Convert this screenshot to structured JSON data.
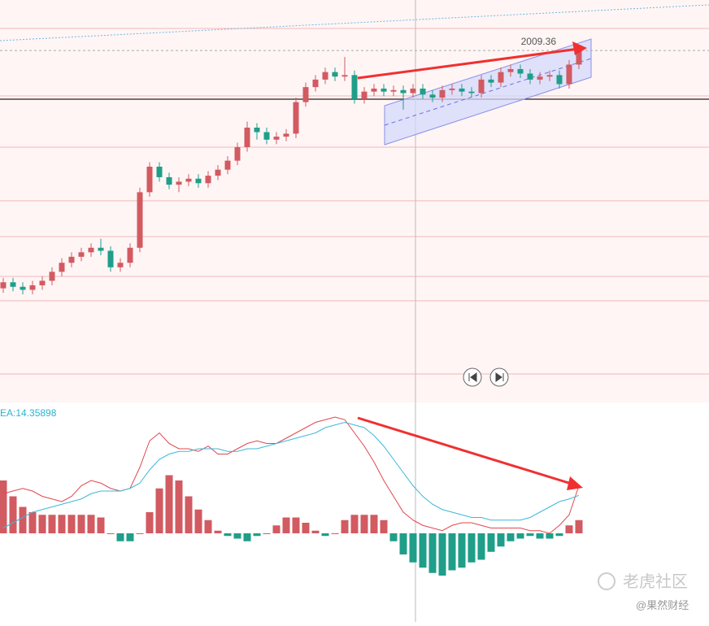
{
  "chart_data": [
    {
      "type": "candlestick",
      "price_line": 2009.36,
      "ylim": [
        1775,
        2043
      ],
      "up_color": "#d25a61",
      "down_color": "#1f9e89",
      "open": [
        1851,
        1855,
        1852,
        1850,
        1853,
        1856,
        1862,
        1868,
        1872,
        1875,
        1878,
        1876,
        1865,
        1868,
        1878,
        1915,
        1932,
        1925,
        1920,
        1922,
        1924,
        1921,
        1926,
        1930,
        1936,
        1945,
        1958,
        1955,
        1950,
        1952,
        1954,
        1975,
        1985,
        1990,
        1995,
        1992,
        1993,
        1977,
        1982,
        1984,
        1982,
        1983,
        1981,
        1984,
        1980,
        1978,
        1983,
        1984,
        1982,
        1981,
        1990,
        1988,
        1995,
        1997,
        1994,
        1990,
        1992,
        1993,
        1987,
        2000
      ],
      "high": [
        1858,
        1858,
        1855,
        1856,
        1859,
        1865,
        1871,
        1875,
        1878,
        1881,
        1884,
        1879,
        1871,
        1881,
        1918,
        1935,
        1935,
        1928,
        1925,
        1927,
        1927,
        1929,
        1933,
        1939,
        1948,
        1962,
        1961,
        1958,
        1955,
        1957,
        1978,
        1988,
        1993,
        1998,
        1998,
        2005,
        1996,
        1985,
        1987,
        1987,
        1986,
        1986,
        1987,
        1987,
        1983,
        1986,
        1987,
        1987,
        1985,
        1993,
        1993,
        1998,
        2000,
        2000,
        1997,
        1995,
        1996,
        1996,
        2003,
        2012
      ],
      "low": [
        1848,
        1849,
        1847,
        1847,
        1850,
        1853,
        1859,
        1865,
        1869,
        1872,
        1873,
        1862,
        1862,
        1865,
        1875,
        1912,
        1922,
        1917,
        1915,
        1919,
        1918,
        1918,
        1923,
        1927,
        1933,
        1942,
        1950,
        1947,
        1947,
        1949,
        1951,
        1972,
        1982,
        1987,
        1989,
        1989,
        1974,
        1974,
        1979,
        1979,
        1979,
        1970,
        1978,
        1977,
        1975,
        1975,
        1980,
        1979,
        1978,
        1978,
        1985,
        1985,
        1992,
        1991,
        1987,
        1987,
        1989,
        1984,
        1984,
        1997
      ],
      "close": [
        1855,
        1852,
        1850,
        1853,
        1856,
        1862,
        1868,
        1872,
        1875,
        1878,
        1876,
        1865,
        1868,
        1878,
        1915,
        1932,
        1925,
        1920,
        1922,
        1924,
        1921,
        1926,
        1930,
        1936,
        1945,
        1958,
        1955,
        1950,
        1952,
        1954,
        1975,
        1985,
        1990,
        1995,
        1992,
        1993,
        1977,
        1982,
        1984,
        1982,
        1983,
        1981,
        1984,
        1980,
        1978,
        1983,
        1984,
        1982,
        1981,
        1990,
        1988,
        1995,
        1997,
        1994,
        1990,
        1992,
        1993,
        1987,
        2000,
        2009
      ]
    },
    {
      "type": "macd",
      "dea_label": "EA:14.35898",
      "ylim": [
        -32,
        48
      ],
      "histogram": [
        20,
        14,
        10,
        8,
        7,
        7,
        7,
        7,
        7,
        7,
        6,
        0,
        -3,
        -3,
        0,
        8,
        17,
        22,
        20,
        14,
        9,
        5,
        1,
        -1,
        -2,
        -3,
        -1,
        0,
        3,
        6,
        6,
        4,
        1,
        -1,
        0,
        5,
        7,
        7,
        7,
        5,
        -3,
        -8,
        -11,
        -13,
        -15,
        -16,
        -14,
        -13,
        -11,
        -10,
        -7,
        -5,
        -3,
        -2,
        -1,
        -2,
        -2,
        -1,
        3,
        5
      ],
      "dif": [
        15,
        16,
        17,
        16,
        14,
        13,
        12,
        14,
        18,
        20,
        19,
        17,
        16,
        17,
        25,
        35,
        38,
        34,
        32,
        32,
        31,
        33,
        30,
        30,
        32,
        34,
        35,
        34,
        34,
        36,
        38,
        40,
        42,
        43,
        44,
        43,
        38,
        33,
        27,
        20,
        14,
        8,
        5,
        3,
        2,
        1,
        3,
        4,
        4,
        3,
        2,
        2,
        2,
        2,
        1,
        1,
        0,
        3,
        7,
        18
      ],
      "dea": [
        2,
        4,
        6,
        8,
        9,
        10,
        11,
        12,
        13,
        15,
        16,
        16,
        16,
        17,
        19,
        24,
        28,
        30,
        31,
        31,
        32,
        32,
        32,
        31,
        31,
        32,
        32,
        33,
        34,
        35,
        36,
        37,
        38,
        40,
        41,
        42,
        41,
        40,
        37,
        33,
        28,
        23,
        18,
        14,
        11,
        9,
        8,
        7,
        6,
        6,
        5,
        5,
        5,
        5,
        6,
        8,
        10,
        12,
        13,
        14.35898
      ],
      "dif_color": "#e0474c",
      "dea_color": "#3bb8d8",
      "up_color": "#d25a61",
      "down_color": "#1f9e89"
    },
    {
      "watermark": "老虎社区",
      "source": "@果然财经"
    }
  ]
}
